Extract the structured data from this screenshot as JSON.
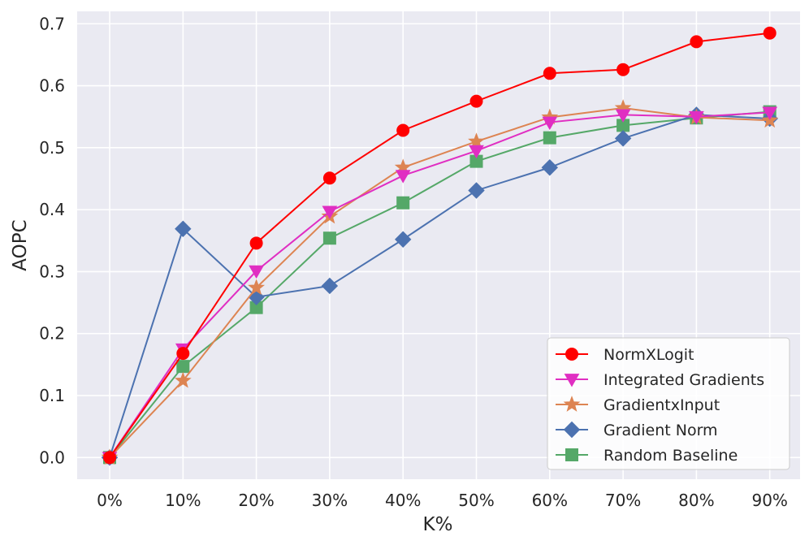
{
  "chart_data": {
    "type": "line",
    "title": "",
    "xlabel": "K%",
    "ylabel": "AOPC",
    "categories": [
      "0%",
      "10%",
      "20%",
      "30%",
      "40%",
      "50%",
      "60%",
      "70%",
      "80%",
      "90%"
    ],
    "ylim": [
      -0.035,
      0.72
    ],
    "yticks": [
      "0.0",
      "0.1",
      "0.2",
      "0.3",
      "0.4",
      "0.5",
      "0.6",
      "0.7"
    ],
    "ytick_values": [
      0.0,
      0.1,
      0.2,
      0.3,
      0.4,
      0.5,
      0.6,
      0.7
    ],
    "grid": true,
    "legend_position": "bottom-right",
    "series": [
      {
        "name": "NormXLogit",
        "color": "#ff0000",
        "marker": "circle",
        "values": [
          0.0,
          0.168,
          0.346,
          0.451,
          0.528,
          0.575,
          0.62,
          0.626,
          0.671,
          0.685
        ]
      },
      {
        "name": "Integrated Gradients",
        "color": "#e02ec2",
        "marker": "triangle-down",
        "values": [
          0.0,
          0.175,
          0.301,
          0.397,
          0.455,
          0.495,
          0.541,
          0.553,
          0.55,
          0.557
        ]
      },
      {
        "name": "GradientxInput",
        "color": "#dd8452",
        "marker": "star",
        "values": [
          0.0,
          0.124,
          0.274,
          0.389,
          0.468,
          0.51,
          0.549,
          0.564,
          0.549,
          0.544
        ]
      },
      {
        "name": "Gradient Norm",
        "color": "#4c72b0",
        "marker": "diamond",
        "values": [
          0.0,
          0.369,
          0.259,
          0.277,
          0.352,
          0.431,
          0.468,
          0.515,
          0.553,
          0.547
        ]
      },
      {
        "name": "Random Baseline",
        "color": "#55a868",
        "marker": "square",
        "values": [
          0.0,
          0.147,
          0.242,
          0.354,
          0.411,
          0.478,
          0.516,
          0.536,
          0.548,
          0.558
        ]
      }
    ]
  }
}
